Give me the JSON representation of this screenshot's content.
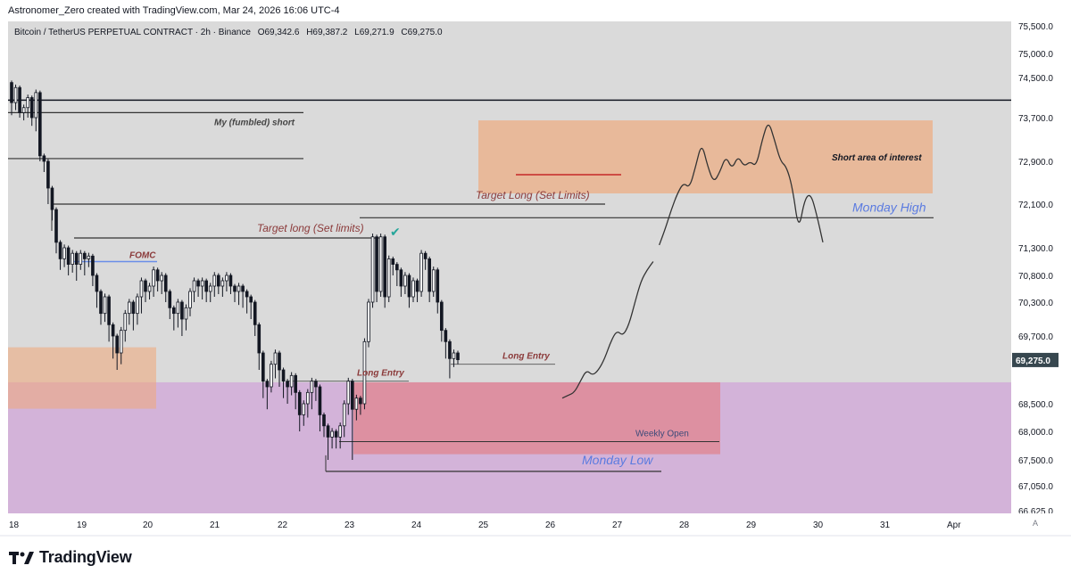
{
  "credit": "Astronomer_Zero created with TradingView.com, Mar 24, 2026 16:06 UTC-4",
  "header": {
    "symbol": "Bitcoin / TetherUS PERPETUAL CONTRACT · 2h · Binance",
    "open": "O69,342.6",
    "high": "H69,387.2",
    "low": "L69,271.9",
    "close": "C69,275.0"
  },
  "brand": {
    "name": "TradingView"
  },
  "auto_label": "A",
  "colors": {
    "plot_bg": "#dadada",
    "up_candle": "#26a69a",
    "down_candle": "#131722",
    "demand_zone": "#ce93d8",
    "peach_zone": "#f0a878",
    "red_zone": "#e57373",
    "blue_text": "#5b7be0",
    "dark_red_text": "#8b3a3a"
  },
  "chart_data": {
    "type": "candlestick",
    "symbol": "BTCUSDT.P",
    "interval": "2h",
    "y_axis": {
      "min": 66625,
      "max": 75500,
      "ticks": [
        "75,500.0",
        "75,000.0",
        "74,500.0",
        "73,700.0",
        "72,900.0",
        "72,100.0",
        "71,300.0",
        "70,800.0",
        "70,300.0",
        "69,700.0",
        "68,500.0",
        "68,000.0",
        "67,500.0",
        "67,050.0",
        "66,625.0"
      ],
      "current_price": "69,275.0"
    },
    "x_axis": {
      "ticks": [
        "18",
        "19",
        "20",
        "21",
        "22",
        "23",
        "24",
        "25",
        "26",
        "27",
        "28",
        "29",
        "30",
        "31",
        "Apr"
      ]
    },
    "candles": [
      [
        74400,
        74000,
        73750
      ],
      [
        74000,
        74300,
        73850
      ],
      [
        74300,
        73800,
        73700
      ],
      [
        73800,
        73900,
        73650
      ],
      [
        73900,
        74100,
        73700
      ],
      [
        74100,
        73700,
        73550
      ],
      [
        73700,
        74200,
        73450
      ],
      [
        74200,
        73000,
        72900
      ],
      [
        73000,
        72900,
        72700
      ],
      [
        72900,
        72400,
        72100
      ],
      [
        72400,
        72000,
        71800
      ],
      [
        72000,
        71400,
        71200
      ],
      [
        71400,
        71100,
        70900
      ],
      [
        71100,
        71300,
        70950
      ],
      [
        71300,
        71000,
        70800
      ],
      [
        71000,
        71200,
        70850
      ],
      [
        71200,
        71000,
        70700
      ],
      [
        71000,
        71200,
        70900
      ],
      [
        71200,
        71100,
        70800
      ],
      [
        71100,
        71150,
        70950
      ],
      [
        71150,
        70800,
        70600
      ],
      [
        70800,
        70500,
        70200
      ],
      [
        70500,
        70100,
        69900
      ],
      [
        70100,
        70400,
        69950
      ],
      [
        70400,
        69900,
        69600
      ],
      [
        69900,
        69700,
        69300
      ],
      [
        69700,
        69400,
        69100
      ],
      [
        69400,
        69800,
        69200
      ],
      [
        69800,
        70100,
        69600
      ],
      [
        70100,
        70300,
        69900
      ],
      [
        70300,
        70100,
        69800
      ],
      [
        70100,
        70400,
        69900
      ],
      [
        70400,
        70700,
        70100
      ],
      [
        70700,
        70500,
        70300
      ],
      [
        70500,
        70600,
        70350
      ],
      [
        70600,
        70900,
        70400
      ],
      [
        70900,
        70700,
        70500
      ],
      [
        70700,
        70800,
        70450
      ],
      [
        70800,
        70500,
        70300
      ],
      [
        70500,
        70200,
        70000
      ],
      [
        70200,
        70100,
        69800
      ],
      [
        70100,
        70300,
        69850
      ],
      [
        70300,
        70000,
        69700
      ],
      [
        70000,
        70200,
        69800
      ],
      [
        70200,
        70500,
        70050
      ],
      [
        70500,
        70700,
        70300
      ],
      [
        70700,
        70600,
        70400
      ],
      [
        70600,
        70700,
        70350
      ],
      [
        70700,
        70500,
        70300
      ],
      [
        70500,
        70600,
        70300
      ],
      [
        70600,
        70800,
        70400
      ],
      [
        70800,
        70600,
        70450
      ],
      [
        70600,
        70700,
        70400
      ],
      [
        70700,
        70800,
        70500
      ],
      [
        70800,
        70600,
        70450
      ],
      [
        70600,
        70500,
        70300
      ],
      [
        70500,
        70600,
        70250
      ],
      [
        70600,
        70500,
        70200
      ],
      [
        70500,
        70400,
        70100
      ],
      [
        70400,
        70300,
        70000
      ],
      [
        70300,
        69900,
        69700
      ],
      [
        69900,
        69400,
        69100
      ],
      [
        69400,
        68900,
        68600
      ],
      [
        68900,
        68800,
        68400
      ],
      [
        68800,
        69200,
        68700
      ],
      [
        69200,
        69400,
        68950
      ],
      [
        69400,
        69100,
        68800
      ],
      [
        69100,
        68900,
        68600
      ],
      [
        68900,
        68800,
        68500
      ],
      [
        68800,
        69000,
        68650
      ],
      [
        69000,
        68700,
        68400
      ],
      [
        68700,
        68300,
        68000
      ],
      [
        68300,
        68500,
        68100
      ],
      [
        68500,
        68700,
        68250
      ],
      [
        68700,
        68900,
        68400
      ],
      [
        68900,
        68800,
        68550
      ],
      [
        68800,
        68300,
        68000
      ],
      [
        68300,
        68100,
        67900
      ],
      [
        68100,
        67900,
        67500
      ],
      [
        67900,
        68000,
        67700
      ],
      [
        68000,
        67900,
        67700
      ],
      [
        67900,
        68100,
        67700
      ],
      [
        68100,
        68500,
        67900
      ],
      [
        68500,
        68900,
        68300
      ],
      [
        68900,
        68400,
        67500
      ],
      [
        68400,
        68600,
        68200
      ],
      [
        68600,
        68500,
        68300
      ],
      [
        68500,
        69600,
        68400
      ],
      [
        69600,
        70300,
        69500
      ],
      [
        70300,
        71500,
        70200
      ],
      [
        71500,
        70500,
        70300
      ],
      [
        70500,
        71500,
        70400
      ],
      [
        71500,
        70400,
        70200
      ],
      [
        70400,
        71100,
        70300
      ],
      [
        71100,
        71000,
        70800
      ],
      [
        71000,
        70900,
        70600
      ],
      [
        70900,
        70600,
        70400
      ],
      [
        70600,
        70800,
        70450
      ],
      [
        70800,
        70400,
        70200
      ],
      [
        70400,
        70700,
        70300
      ],
      [
        70700,
        70500,
        70300
      ],
      [
        70500,
        71200,
        70400
      ],
      [
        71200,
        71100,
        70900
      ],
      [
        71100,
        70500,
        70300
      ],
      [
        70500,
        70900,
        70400
      ],
      [
        70900,
        70300,
        70100
      ],
      [
        70300,
        69800,
        69600
      ],
      [
        69800,
        69600,
        69300
      ],
      [
        69600,
        69300,
        68950
      ],
      [
        69300,
        69400,
        69150
      ],
      [
        69400,
        69280,
        69200
      ]
    ],
    "annotations": {
      "my_short": "My (fumbled) short",
      "fomc": "FOMC",
      "target_long_1": "Target long (Set limits)",
      "target_long_2": "Target Long (Set Limits)",
      "short_area": "Short area of interest",
      "monday_high": "Monday High",
      "monday_low": "Monday Low",
      "long_entry_1": "Long Entry",
      "long_entry_2": "Long Entry",
      "weekly_open": "Weekly Open",
      "checkmark": "✔"
    },
    "levels": {
      "top_line": 74050,
      "my_short": 73800,
      "line_72900": 72950,
      "target_long_2": 72100,
      "monday_high": 71850,
      "target_long_1": 71480,
      "fomc": 71050,
      "long_entry_1": 68900,
      "long_entry_2": 69200,
      "weekly_open": 67820,
      "monday_low": 67300,
      "red_zone_mark": 72650
    },
    "zones": {
      "demand": [
        66625,
        68880
      ],
      "peach_left": [
        68410,
        69500
      ],
      "red_zone": [
        67600,
        68880
      ],
      "short_area": [
        72300,
        73650
      ]
    },
    "projection_path": [
      [
        68600,
        0
      ],
      [
        68650,
        1
      ],
      [
        68700,
        2
      ],
      [
        68900,
        3
      ],
      [
        69100,
        4
      ],
      [
        69000,
        5
      ],
      [
        69100,
        6
      ],
      [
        69300,
        7
      ],
      [
        69600,
        8
      ],
      [
        69800,
        9
      ],
      [
        69700,
        10
      ],
      [
        69900,
        11
      ],
      [
        70300,
        12
      ],
      [
        70700,
        13
      ],
      [
        70900,
        14
      ],
      [
        71050,
        15
      ],
      null,
      [
        71350,
        16
      ],
      [
        71650,
        17
      ],
      [
        72000,
        18
      ],
      [
        72300,
        19
      ],
      [
        72500,
        20
      ],
      [
        72400,
        21
      ],
      [
        72800,
        22
      ],
      [
        73250,
        23
      ],
      [
        72800,
        24
      ],
      [
        72500,
        25
      ],
      [
        72700,
        26
      ],
      [
        73000,
        27
      ],
      [
        72750,
        28
      ],
      [
        73000,
        29
      ],
      [
        72800,
        30
      ],
      [
        72900,
        31
      ],
      [
        72800,
        32
      ],
      [
        73300,
        33
      ],
      [
        73650,
        34
      ],
      [
        73300,
        35
      ],
      [
        72900,
        36
      ],
      [
        72800,
        37
      ],
      [
        72400,
        38
      ],
      [
        71600,
        39
      ],
      [
        72200,
        40
      ],
      [
        72300,
        41
      ],
      [
        71900,
        42
      ],
      [
        71400,
        43
      ]
    ]
  }
}
